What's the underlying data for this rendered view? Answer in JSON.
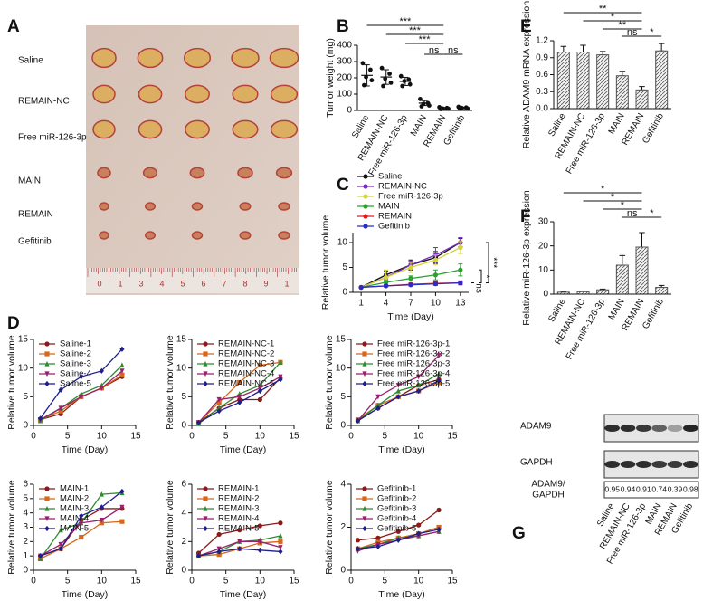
{
  "photo": {
    "panel_label": "A",
    "row_labels": [
      "Saline",
      "REMAIN-NC",
      "Free miR-126-3p",
      "MAIN",
      "REMAIN",
      "Gefitinib"
    ],
    "ruler_labels": [
      "0",
      "1",
      "3",
      "4",
      "5",
      "6",
      "7",
      "8",
      "9",
      "1"
    ]
  },
  "chart_data": [
    {
      "type": "dotplot",
      "panel_label": "B",
      "y_label": "Tumor weight (mg)",
      "color": "#111111",
      "categories": [
        "Saline",
        "REMAIN-NC",
        "Free miR-126-3p",
        "MAIN",
        "REMAIN",
        "Gefitinib"
      ],
      "values": [
        215,
        205,
        178,
        45,
        13,
        15
      ],
      "errors": [
        65,
        45,
        25,
        15,
        5,
        5
      ],
      "points": [
        [
          290,
          250,
          205,
          185,
          155
        ],
        [
          260,
          225,
          195,
          170,
          150
        ],
        [
          210,
          190,
          180,
          160,
          150
        ],
        [
          70,
          45,
          40,
          30,
          25
        ],
        [
          20,
          15,
          12,
          10,
          8
        ],
        [
          22,
          18,
          15,
          12,
          10
        ]
      ],
      "ylim": [
        0,
        400
      ],
      "yticks": [
        0,
        100,
        200,
        300,
        400
      ],
      "annotations": [
        "***",
        "***",
        "***",
        "ns",
        "ns"
      ]
    },
    {
      "type": "bar",
      "panel_label": "E",
      "y_label": "Relative ADAM9 mRNA expression",
      "color": "#555555",
      "categories": [
        "Saline",
        "REMAIN-NC",
        "Free miR-126-3p",
        "MAIN",
        "REMAIN",
        "Gefitinib"
      ],
      "values": [
        1.0,
        1.0,
        0.95,
        0.58,
        0.33,
        1.02
      ],
      "errors": [
        0.1,
        0.12,
        0.06,
        0.08,
        0.06,
        0.13
      ],
      "ylim": [
        0,
        1.2
      ],
      "yticks": [
        {
          "value": 0,
          "label": "0.0"
        },
        0.3,
        0.6,
        0.9,
        1.2
      ],
      "annotations": [
        "**",
        "*",
        "**",
        "ns",
        "*"
      ]
    },
    {
      "type": "line",
      "panel_label": "C",
      "x_label": "Time (Day)",
      "y_label": "Relative tumor volume",
      "x": [
        1,
        4,
        7,
        10,
        13
      ],
      "xlim": [
        0,
        14
      ],
      "xticks": [
        1,
        4,
        7,
        10,
        13
      ],
      "ylim": [
        0,
        12
      ],
      "yticks": [
        0,
        5,
        10
      ],
      "series": [
        {
          "name": "Saline",
          "color": "#111111",
          "values": [
            1,
            3.5,
            5.5,
            7,
            10
          ],
          "errors": [
            0,
            0.8,
            1,
            1.2,
            0.8
          ]
        },
        {
          "name": "REMAIN-NC",
          "color": "#7b2fbe",
          "values": [
            1,
            3,
            5.5,
            7.5,
            10
          ],
          "errors": [
            0,
            0.6,
            0.8,
            1.5,
            1
          ]
        },
        {
          "name": "Free miR-126-3p",
          "color": "#d4d43a",
          "values": [
            1,
            3,
            5,
            6.5,
            9
          ],
          "errors": [
            0,
            1.5,
            1,
            1,
            1.2
          ]
        },
        {
          "name": "MAIN",
          "color": "#2ca02c",
          "values": [
            1,
            2,
            2.8,
            3.5,
            4.5
          ],
          "errors": [
            0,
            0.4,
            0.5,
            1,
            1.2
          ]
        },
        {
          "name": "REMAIN",
          "color": "#e31a1c",
          "values": [
            1,
            1.3,
            1.6,
            1.8,
            1.9
          ],
          "errors": [
            0,
            0.2,
            0.3,
            0.3,
            0.4
          ]
        },
        {
          "name": "Gefitinib",
          "color": "#2b2bcb",
          "values": [
            1,
            1.3,
            1.5,
            1.7,
            1.9
          ],
          "errors": [
            0,
            0.2,
            0.2,
            0.3,
            0.3
          ]
        }
      ],
      "annotations": [
        "ns",
        "*",
        "***"
      ]
    },
    {
      "type": "bar",
      "panel_label": "F",
      "y_label": "Relative miR-126-3p expression",
      "color": "#555555",
      "categories": [
        "Saline",
        "REMAIN-NC",
        "Free miR-126-3p",
        "MAIN",
        "REMAIN",
        "Gefitinib"
      ],
      "values": [
        0.8,
        1,
        1.8,
        12,
        19.5,
        2.8
      ],
      "errors": [
        0.2,
        0.3,
        0.3,
        4,
        6,
        0.8
      ],
      "ylim": [
        0,
        30
      ],
      "yticks": [
        0,
        10,
        20,
        30
      ],
      "annotations": [
        "*",
        "*",
        "*",
        "ns",
        "*"
      ]
    },
    {
      "type": "line",
      "panel_label": "D",
      "x_label": "Time (Day)",
      "y_label": "Relative tumor volume",
      "x": [
        1,
        4,
        7,
        10,
        13
      ],
      "xlim": [
        0,
        15
      ],
      "xticks": [
        0,
        5,
        10,
        15
      ],
      "ylim": [
        0,
        15
      ],
      "yticks": [
        0,
        5,
        10,
        15
      ],
      "series": [
        {
          "name": "Saline-1",
          "color": "#8b1a1a",
          "values": [
            1,
            2,
            5,
            6.5,
            8.5
          ]
        },
        {
          "name": "Saline-2",
          "color": "#d2691e",
          "values": [
            1,
            2.5,
            5,
            6.5,
            8.8
          ]
        },
        {
          "name": "Saline-3",
          "color": "#2e8b2e",
          "values": [
            0.8,
            3,
            5.5,
            7,
            10.5
          ]
        },
        {
          "name": "Saline-4",
          "color": "#9b1f6e",
          "values": [
            1,
            3,
            5,
            6.5,
            9.5
          ]
        },
        {
          "name": "Saline-5",
          "color": "#1f1f8b",
          "values": [
            1.2,
            6.2,
            8.5,
            9.5,
            13.3
          ]
        }
      ]
    },
    {
      "type": "line",
      "x_label": "Time (Day)",
      "y_label": "Relative tumor volume",
      "x": [
        1,
        4,
        7,
        10,
        13
      ],
      "xlim": [
        0,
        15
      ],
      "xticks": [
        0,
        5,
        10,
        15
      ],
      "ylim": [
        0,
        15
      ],
      "yticks": [
        0,
        5,
        10,
        15
      ],
      "series": [
        {
          "name": "REMAIN-NC-1",
          "color": "#8b1a1a",
          "values": [
            0.5,
            3,
            4.5,
            4.5,
            8.3
          ]
        },
        {
          "name": "REMAIN-NC-2",
          "color": "#d2691e",
          "values": [
            0.5,
            4,
            7.5,
            10.5,
            11
          ]
        },
        {
          "name": "REMAIN-NC-3",
          "color": "#2e8b2e",
          "values": [
            0.3,
            3,
            5.5,
            7,
            11
          ]
        },
        {
          "name": "REMAIN-NC-4",
          "color": "#9b1f6e",
          "values": [
            0.5,
            4.5,
            5,
            6.5,
            8.5
          ]
        },
        {
          "name": "REMAIN-NC-5",
          "color": "#1f1f8b",
          "values": [
            0.5,
            2.5,
            4,
            6,
            8
          ]
        }
      ]
    },
    {
      "type": "line",
      "x_label": "Time (Day)",
      "y_label": "Relative tumor volume",
      "x": [
        1,
        4,
        7,
        10,
        13
      ],
      "xlim": [
        0,
        15
      ],
      "xticks": [
        0,
        5,
        10,
        15
      ],
      "ylim": [
        0,
        15
      ],
      "yticks": [
        0,
        5,
        10,
        15
      ],
      "series": [
        {
          "name": "Free miR-126-3p-1",
          "color": "#8b1a1a",
          "values": [
            0.8,
            3,
            5,
            7,
            8
          ]
        },
        {
          "name": "Free miR-126-3p-2",
          "color": "#d2691e",
          "values": [
            1,
            3.5,
            5,
            6,
            7.5
          ]
        },
        {
          "name": "Free miR-126-3p-3",
          "color": "#2e8b2e",
          "values": [
            0.8,
            3.5,
            6,
            7,
            9
          ]
        },
        {
          "name": "Free miR-126-3p-4",
          "color": "#9b1f6e",
          "values": [
            0.8,
            5,
            7,
            8.5,
            12.2
          ]
        },
        {
          "name": "Free miR-126-3p-5",
          "color": "#1f1f8b",
          "values": [
            0.8,
            3,
            5,
            6,
            7.8
          ]
        }
      ]
    },
    {
      "type": "line",
      "x_label": "Time (Day)",
      "y_label": "Relative tumor volume",
      "x": [
        1,
        4,
        7,
        10,
        13
      ],
      "xlim": [
        0,
        15
      ],
      "xticks": [
        0,
        5,
        10,
        15
      ],
      "ylim": [
        0,
        6
      ],
      "yticks": [
        0,
        1,
        2,
        3,
        4,
        5,
        6
      ],
      "series": [
        {
          "name": "MAIN-1",
          "color": "#8b1a1a",
          "values": [
            1,
            1.5,
            3.5,
            4.3,
            4.3
          ]
        },
        {
          "name": "MAIN-2",
          "color": "#d2691e",
          "values": [
            0.8,
            1.5,
            2.3,
            3.3,
            3.4
          ]
        },
        {
          "name": "MAIN-3",
          "color": "#2e8b2e",
          "values": [
            0.8,
            2.8,
            3.3,
            5.3,
            5.4
          ]
        },
        {
          "name": "MAIN-4",
          "color": "#9b1f6e",
          "values": [
            1,
            1.8,
            3.3,
            3.5,
            4.4
          ]
        },
        {
          "name": "MAIN-5",
          "color": "#1f1f8b",
          "values": [
            1,
            1.5,
            3.8,
            4.4,
            5.5
          ]
        }
      ]
    },
    {
      "type": "line",
      "x_label": "Time (Day)",
      "y_label": "Relative tumor volume",
      "x": [
        1,
        4,
        7,
        10,
        13
      ],
      "xlim": [
        0,
        15
      ],
      "xticks": [
        0,
        5,
        10,
        15
      ],
      "ylim": [
        0,
        6
      ],
      "yticks": [
        0,
        2,
        4,
        6
      ],
      "series": [
        {
          "name": "REMAIN-1",
          "color": "#8b1a1a",
          "values": [
            1.2,
            2.5,
            2.8,
            3.1,
            3.3
          ]
        },
        {
          "name": "REMAIN-2",
          "color": "#d2691e",
          "values": [
            1,
            1.1,
            1.5,
            1.9,
            2.0
          ]
        },
        {
          "name": "REMAIN-3",
          "color": "#2e8b2e",
          "values": [
            1,
            1.3,
            2,
            2.1,
            2.4
          ]
        },
        {
          "name": "REMAIN-4",
          "color": "#9b1f6e",
          "values": [
            1,
            1.5,
            2,
            2,
            1.6
          ]
        },
        {
          "name": "REMAIN-5",
          "color": "#1f1f8b",
          "values": [
            1,
            1.3,
            1.5,
            1.4,
            1.3
          ]
        }
      ]
    },
    {
      "type": "line",
      "x_label": "Time (Day)",
      "y_label": "Relative tumor volume",
      "x": [
        1,
        4,
        7,
        10,
        13
      ],
      "xlim": [
        0,
        15
      ],
      "xticks": [
        0,
        5,
        10,
        15
      ],
      "ylim": [
        0,
        4
      ],
      "yticks": [
        0,
        2,
        4
      ],
      "series": [
        {
          "name": "Gefitinib-1",
          "color": "#8b1a1a",
          "values": [
            1.4,
            1.5,
            1.8,
            2.1,
            2.8
          ]
        },
        {
          "name": "Gefitinib-2",
          "color": "#d2691e",
          "values": [
            1,
            1.3,
            1.5,
            1.7,
            2.0
          ]
        },
        {
          "name": "Gefitinib-3",
          "color": "#2e8b2e",
          "values": [
            1,
            1.2,
            1.5,
            1.6,
            1.8
          ]
        },
        {
          "name": "Gefitinib-4",
          "color": "#9b1f6e",
          "values": [
            0.9,
            1.2,
            1.4,
            1.6,
            1.8
          ]
        },
        {
          "name": "Gefitinib-5",
          "color": "#1f1f8b",
          "values": [
            1,
            1.1,
            1.4,
            1.7,
            1.9
          ]
        }
      ]
    },
    {
      "type": "blot",
      "panel_label": "G",
      "band_labels": [
        "ADAM9",
        "GAPDH"
      ],
      "ratio_label": [
        "ADAM9/",
        "GAPDH"
      ],
      "categories": [
        "Saline",
        "REMAIN-NC",
        "Free miR-126-3p",
        "MAIN",
        "REMAIN",
        "Gefitinib"
      ],
      "ratios": [
        0.95,
        0.94,
        0.91,
        0.74,
        0.39,
        0.98
      ]
    }
  ]
}
